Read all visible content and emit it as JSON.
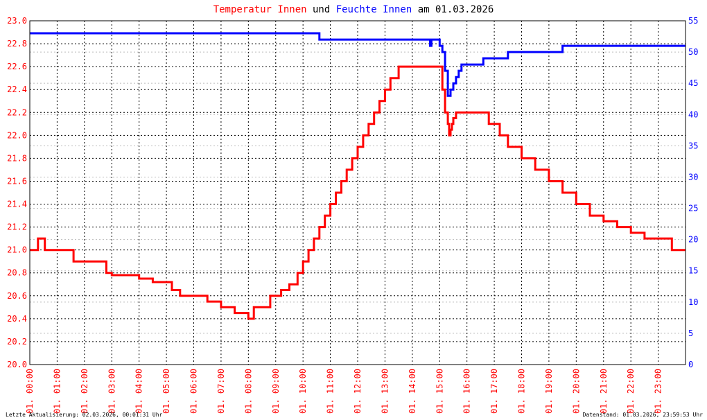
{
  "title": {
    "part1": "Temperatur Innen",
    "part2": " und ",
    "part3": "Feuchte Innen",
    "part4": " am 01.03.2026"
  },
  "footer": {
    "left": "Letzte Aktualisierung: 02.03.2026, 00:01:31 Uhr",
    "right": "Datenstand: 01.03.2026, 23:59:53 Uhr"
  },
  "colors": {
    "temperature": "#ff0000",
    "humidity": "#0000ff",
    "grid": "#000000",
    "background": "#ffffff"
  },
  "chart_data": {
    "type": "line",
    "title": "Temperatur Innen und Feuchte Innen am 01.03.2026",
    "grid": true,
    "x_range_hours": [
      0,
      24
    ],
    "x_ticks": [
      "01. 00:00",
      "01. 01:00",
      "01. 02:00",
      "01. 03:00",
      "01. 04:00",
      "01. 05:00",
      "01. 06:00",
      "01. 07:00",
      "01. 08:00",
      "01. 09:00",
      "01. 10:00",
      "01. 11:00",
      "01. 12:00",
      "01. 13:00",
      "01. 14:00",
      "01. 15:00",
      "01. 16:00",
      "01. 17:00",
      "01. 18:00",
      "01. 19:00",
      "01. 20:00",
      "01. 21:00",
      "01. 22:00",
      "01. 23:00"
    ],
    "y_left": {
      "min": 20.0,
      "max": 23.0,
      "ticks": [
        "20.0",
        "20.2",
        "20.4",
        "20.6",
        "20.8",
        "21.0",
        "21.2",
        "21.4",
        "21.6",
        "21.8",
        "22.0",
        "22.2",
        "22.4",
        "22.6",
        "22.8",
        "23.0"
      ]
    },
    "y_right": {
      "min": 0,
      "max": 55,
      "ticks": [
        "0",
        "5",
        "10",
        "15",
        "20",
        "25",
        "30",
        "35",
        "40",
        "45",
        "50",
        "55"
      ]
    },
    "series": [
      {
        "name": "Temperatur Innen",
        "axis": "left",
        "x": [
          0,
          0.3,
          0.55,
          1.3,
          1.6,
          2.8,
          3.0,
          4.0,
          4.5,
          5.2,
          5.5,
          6.5,
          7.0,
          7.5,
          8.0,
          8.2,
          8.8,
          9.2,
          9.5,
          9.8,
          10.0,
          10.2,
          10.4,
          10.6,
          10.8,
          11.0,
          11.2,
          11.4,
          11.6,
          11.8,
          12.0,
          12.2,
          12.4,
          12.6,
          12.8,
          13.0,
          13.2,
          13.5,
          14.0,
          15.0,
          15.1,
          15.2,
          15.3,
          15.35,
          15.4,
          15.45,
          15.5,
          15.6,
          15.8,
          16.5,
          16.8,
          17.2,
          17.5,
          18.0,
          18.5,
          19.0,
          19.5,
          20.0,
          20.5,
          21.0,
          21.5,
          22.0,
          22.5,
          23.0,
          23.5,
          24.0
        ],
        "y": [
          21.0,
          21.1,
          21.0,
          21.0,
          20.9,
          20.8,
          20.78,
          20.75,
          20.72,
          20.65,
          20.6,
          20.55,
          20.5,
          20.45,
          20.4,
          20.5,
          20.6,
          20.65,
          20.7,
          20.8,
          20.9,
          21.0,
          21.1,
          21.2,
          21.3,
          21.4,
          21.5,
          21.6,
          21.7,
          21.8,
          21.9,
          22.0,
          22.1,
          22.2,
          22.3,
          22.4,
          22.5,
          22.6,
          22.6,
          22.6,
          22.4,
          22.2,
          22.1,
          22.0,
          22.05,
          22.1,
          22.15,
          22.2,
          22.2,
          22.2,
          22.1,
          22.0,
          21.9,
          21.8,
          21.7,
          21.6,
          21.5,
          21.4,
          21.3,
          21.25,
          21.2,
          21.15,
          21.1,
          21.1,
          21.0,
          21.0
        ]
      },
      {
        "name": "Feuchte Innen",
        "axis": "right",
        "x": [
          0,
          10.5,
          10.6,
          14.6,
          14.65,
          14.7,
          15.0,
          15.1,
          15.2,
          15.3,
          15.4,
          15.5,
          15.6,
          15.7,
          15.8,
          16.0,
          16.3,
          16.6,
          17.0,
          17.5,
          18.0,
          19.0,
          19.5,
          20.0,
          22.0,
          24.0
        ],
        "y": [
          53,
          53,
          52,
          52,
          51,
          52,
          51,
          50,
          47,
          43,
          44,
          45,
          46,
          47,
          48,
          48,
          48,
          49,
          49,
          50,
          50,
          50,
          51,
          51,
          51,
          51
        ]
      }
    ]
  }
}
